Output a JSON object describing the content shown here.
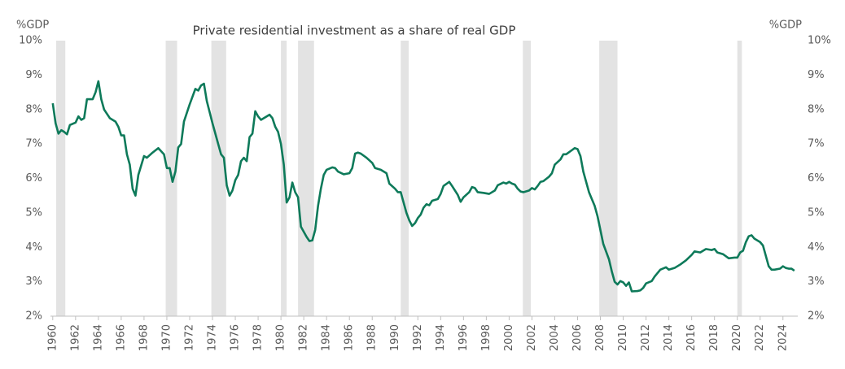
{
  "chart_data": {
    "type": "line",
    "title": "Private residential investment as a share of real GDP",
    "y_label": "%GDP",
    "y2_label": "%GDP",
    "xlim": [
      1959.8,
      2025.3
    ],
    "xticks": [
      1960,
      1962,
      1964,
      1966,
      1968,
      1970,
      1972,
      1974,
      1976,
      1978,
      1980,
      1982,
      1984,
      1986,
      1988,
      1990,
      1992,
      1994,
      1996,
      1998,
      2000,
      2002,
      2004,
      2006,
      2008,
      2010,
      2012,
      2014,
      2016,
      2018,
      2020,
      2022,
      2024
    ],
    "ylim": [
      2,
      10
    ],
    "yticks": [
      {
        "value": 2,
        "label": "2%"
      },
      {
        "value": 3,
        "label": "3%"
      },
      {
        "value": 4,
        "label": "4%"
      },
      {
        "value": 5,
        "label": "5%"
      },
      {
        "value": 6,
        "label": "6%"
      },
      {
        "value": 7,
        "label": "7%"
      },
      {
        "value": 8,
        "label": "8%"
      },
      {
        "value": 9,
        "label": "9%"
      },
      {
        "value": 10,
        "label": "10%"
      }
    ],
    "y2lim": [
      2,
      10
    ],
    "y2ticks": [
      {
        "value": 2,
        "label": "2%"
      },
      {
        "value": 3,
        "label": "3%"
      },
      {
        "value": 4,
        "label": "4%"
      },
      {
        "value": 5,
        "label": "5%"
      },
      {
        "value": 6,
        "label": "6%"
      },
      {
        "value": 7,
        "label": "7%"
      },
      {
        "value": 8,
        "label": "8%"
      },
      {
        "value": 9,
        "label": "9%"
      },
      {
        "value": 10,
        "label": "10%"
      }
    ],
    "grid": false,
    "shading_color": "#e3e3e3",
    "shading": [
      [
        1960.3,
        1961.1
      ],
      [
        1969.9,
        1970.9
      ],
      [
        1973.9,
        1975.2
      ],
      [
        1980.0,
        1980.5
      ],
      [
        1981.5,
        1982.9
      ],
      [
        1990.5,
        1991.2
      ],
      [
        2001.2,
        2001.9
      ],
      [
        2007.9,
        2009.5
      ],
      [
        2020.0,
        2020.4
      ]
    ],
    "x": [
      1960,
      1960.25,
      1960.5,
      1960.75,
      1961,
      1961.25,
      1961.5,
      1962,
      1962.25,
      1962.5,
      1962.75,
      1963,
      1963.5,
      1963.75,
      1964,
      1964.25,
      1964.5,
      1965,
      1965.5,
      1965.75,
      1966,
      1966.25,
      1966.5,
      1966.75,
      1967,
      1967.25,
      1967.5,
      1968,
      1968.25,
      1968.75,
      1969.25,
      1969.75,
      1970,
      1970.25,
      1970.5,
      1970.75,
      1971,
      1971.25,
      1971.5,
      1972,
      1972.5,
      1972.75,
      1973,
      1973.25,
      1973.5,
      1974,
      1974.5,
      1974.75,
      1975,
      1975.25,
      1975.5,
      1975.75,
      1976,
      1976.25,
      1976.5,
      1976.75,
      1977,
      1977.25,
      1977.5,
      1977.75,
      1978,
      1978.25,
      1978.75,
      1979,
      1979.25,
      1979.5,
      1979.75,
      1980,
      1980.25,
      1980.5,
      1980.75,
      1981,
      1981.25,
      1981.5,
      1981.75,
      1982.25,
      1982.5,
      1982.75,
      1983,
      1983.25,
      1983.5,
      1983.75,
      1984,
      1984.5,
      1984.75,
      1985,
      1985.5,
      1986,
      1986.25,
      1986.5,
      1986.75,
      1987,
      1987.5,
      1988,
      1988.25,
      1988.75,
      1989.25,
      1989.5,
      1990,
      1990.25,
      1990.5,
      1990.75,
      1991,
      1991.25,
      1991.5,
      1991.75,
      1992,
      1992.25,
      1992.5,
      1992.75,
      1993,
      1993.25,
      1993.75,
      1994,
      1994.25,
      1994.75,
      1995,
      1995.5,
      1995.75,
      1996,
      1996.5,
      1996.75,
      1997,
      1997.25,
      1997.75,
      1998.25,
      1998.75,
      1999,
      1999.5,
      1999.75,
      2000,
      2000.25,
      2000.5,
      2000.75,
      2001,
      2001.25,
      2001.75,
      2002,
      2002.25,
      2002.5,
      2002.75,
      2003,
      2003.5,
      2003.75,
      2004,
      2004.5,
      2004.75,
      2005,
      2005.5,
      2005.75,
      2006,
      2006.25,
      2006.5,
      2006.75,
      2007,
      2007.5,
      2007.75,
      2008,
      2008.25,
      2008.75,
      2009,
      2009.25,
      2009.5,
      2009.75,
      2010,
      2010.25,
      2010.5,
      2010.75,
      2011.25,
      2011.5,
      2011.75,
      2012,
      2012.5,
      2012.75,
      2013.25,
      2013.75,
      2014,
      2014.5,
      2014.75,
      2015,
      2015.5,
      2016,
      2016.25,
      2016.75,
      2017,
      2017.25,
      2017.75,
      2018,
      2018.25,
      2018.75,
      2019.25,
      2019.75,
      2020,
      2020.25,
      2020.5,
      2020.75,
      2021,
      2021.25,
      2021.5,
      2022,
      2022.25,
      2022.5,
      2022.75,
      2023,
      2023.25,
      2023.75,
      2024,
      2024.25,
      2024.5,
      2024.75,
      2025
    ],
    "series": [
      {
        "name": "Private residential investment",
        "color": "#0e7a5a",
        "values": [
          8.18,
          7.6,
          7.3,
          7.4,
          7.35,
          7.28,
          7.55,
          7.62,
          7.8,
          7.7,
          7.75,
          8.3,
          8.3,
          8.5,
          8.82,
          8.3,
          8.0,
          7.75,
          7.65,
          7.5,
          7.25,
          7.25,
          6.7,
          6.4,
          5.7,
          5.5,
          6.1,
          6.65,
          6.6,
          6.75,
          6.88,
          6.7,
          6.3,
          6.3,
          5.9,
          6.2,
          6.9,
          7.0,
          7.65,
          8.15,
          8.6,
          8.55,
          8.7,
          8.75,
          8.25,
          7.6,
          7.0,
          6.7,
          6.6,
          5.8,
          5.5,
          5.65,
          5.95,
          6.1,
          6.5,
          6.6,
          6.5,
          7.2,
          7.3,
          7.95,
          7.8,
          7.7,
          7.8,
          7.85,
          7.75,
          7.5,
          7.35,
          7.0,
          6.4,
          5.3,
          5.45,
          5.88,
          5.6,
          5.45,
          4.6,
          4.3,
          4.18,
          4.2,
          4.5,
          5.2,
          5.7,
          6.1,
          6.25,
          6.32,
          6.3,
          6.2,
          6.12,
          6.15,
          6.3,
          6.72,
          6.75,
          6.72,
          6.6,
          6.45,
          6.3,
          6.25,
          6.15,
          5.85,
          5.7,
          5.6,
          5.6,
          5.3,
          5.0,
          4.78,
          4.62,
          4.7,
          4.85,
          4.95,
          5.15,
          5.25,
          5.22,
          5.35,
          5.4,
          5.55,
          5.78,
          5.9,
          5.78,
          5.52,
          5.32,
          5.45,
          5.6,
          5.75,
          5.72,
          5.6,
          5.58,
          5.55,
          5.65,
          5.8,
          5.88,
          5.85,
          5.9,
          5.85,
          5.82,
          5.7,
          5.62,
          5.6,
          5.65,
          5.72,
          5.68,
          5.78,
          5.9,
          5.92,
          6.05,
          6.15,
          6.4,
          6.55,
          6.7,
          6.7,
          6.82,
          6.88,
          6.85,
          6.65,
          6.2,
          5.9,
          5.6,
          5.2,
          4.9,
          4.5,
          4.1,
          3.65,
          3.3,
          3.0,
          2.92,
          3.02,
          2.98,
          2.88,
          2.98,
          2.72,
          2.73,
          2.75,
          2.82,
          2.95,
          3.02,
          3.15,
          3.35,
          3.42,
          3.35,
          3.4,
          3.45,
          3.5,
          3.62,
          3.78,
          3.88,
          3.85,
          3.9,
          3.95,
          3.92,
          3.95,
          3.85,
          3.8,
          3.68,
          3.7,
          3.7,
          3.85,
          3.9,
          4.15,
          4.32,
          4.35,
          4.25,
          4.15,
          4.05,
          3.75,
          3.45,
          3.35,
          3.35,
          3.38,
          3.45,
          3.4,
          3.38,
          3.38,
          3.32
        ]
      }
    ]
  }
}
